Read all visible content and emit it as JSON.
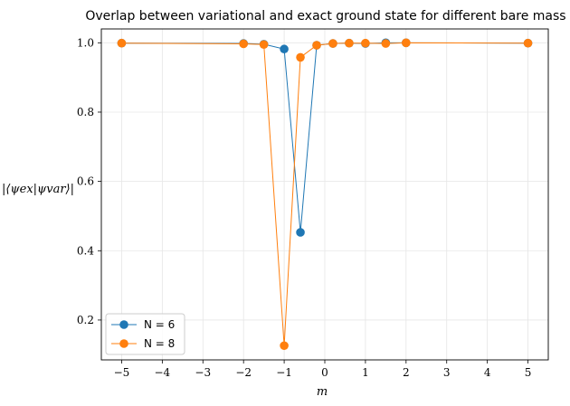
{
  "chart_data": {
    "type": "line",
    "title": "Overlap between variational and exact ground state for different bare mass m",
    "xlabel": "m",
    "ylabel": "|⟨ψex|ψvar⟩|",
    "xlim": [
      -5.5,
      5.5
    ],
    "ylim": [
      0.085,
      1.04
    ],
    "xticks": [
      -5,
      -4,
      -3,
      -2,
      -1,
      0,
      1,
      2,
      3,
      4,
      5
    ],
    "xtick_labels": [
      "−5",
      "−4",
      "−3",
      "−2",
      "−1",
      "0",
      "1",
      "2",
      "3",
      "4",
      "5"
    ],
    "yticks": [
      0.2,
      0.4,
      0.6,
      0.8,
      1.0
    ],
    "ytick_labels": [
      "0.2",
      "0.4",
      "0.6",
      "0.8",
      "1.0"
    ],
    "grid": true,
    "legend_position": "lower-left",
    "series": [
      {
        "name": "N = 6",
        "color": "#1f77b4",
        "x": [
          -5,
          -2,
          -1.5,
          -1,
          -0.6,
          -0.2,
          0.2,
          0.6,
          1,
          1.5,
          2,
          5
        ],
        "y": [
          0.999,
          0.998,
          0.996,
          0.982,
          0.453,
          0.993,
          0.998,
          0.999,
          0.998,
          1.0,
          1.0,
          0.999
        ]
      },
      {
        "name": "N = 8",
        "color": "#ff7f0e",
        "x": [
          -5,
          -2,
          -1.5,
          -1,
          -0.6,
          -0.2,
          0.2,
          0.6,
          1,
          1.5,
          2,
          5
        ],
        "y": [
          0.999,
          0.997,
          0.995,
          0.126,
          0.958,
          0.993,
          0.998,
          0.999,
          0.999,
          0.998,
          1.0,
          0.999
        ]
      }
    ]
  }
}
